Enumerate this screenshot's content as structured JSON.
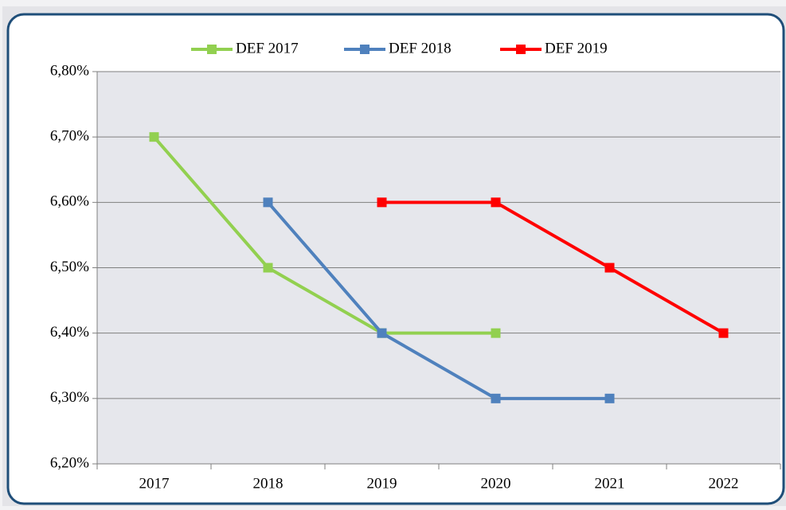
{
  "chart_data": {
    "type": "line",
    "categories": [
      "2017",
      "2018",
      "2019",
      "2020",
      "2021",
      "2022"
    ],
    "series": [
      {
        "name": "DEF 2017",
        "color": "#92d050",
        "values": [
          6.7,
          6.5,
          6.4,
          6.4,
          null,
          null
        ]
      },
      {
        "name": "DEF 2018",
        "color": "#4f81bd",
        "values": [
          null,
          6.6,
          6.4,
          6.3,
          6.3,
          null
        ]
      },
      {
        "name": "DEF 2019",
        "color": "#ff0000",
        "values": [
          null,
          null,
          6.6,
          6.6,
          6.5,
          6.4
        ]
      }
    ],
    "ylim": [
      6.2,
      6.8
    ],
    "yticks": [
      {
        "value": 6.2,
        "label": "6,20%"
      },
      {
        "value": 6.3,
        "label": "6,30%"
      },
      {
        "value": 6.4,
        "label": "6,40%"
      },
      {
        "value": 6.5,
        "label": "6,50%"
      },
      {
        "value": 6.6,
        "label": "6,60%"
      },
      {
        "value": 6.7,
        "label": "6,70%"
      },
      {
        "value": 6.8,
        "label": "6,80%"
      }
    ],
    "grid": true,
    "legend": "top"
  }
}
